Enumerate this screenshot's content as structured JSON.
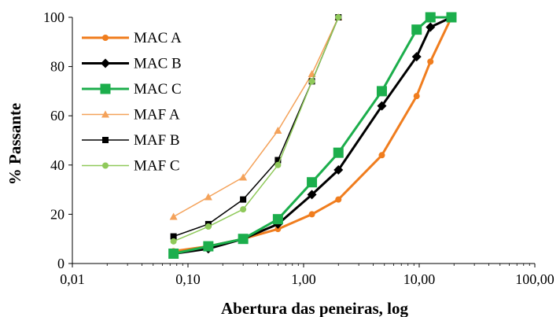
{
  "chart_data": {
    "type": "line",
    "title": "",
    "xlabel": "Abertura das peneiras, log",
    "ylabel": "% Passante",
    "x_scale": "log",
    "xlim": [
      0.01,
      100
    ],
    "ylim": [
      0,
      100
    ],
    "x_ticks": [
      {
        "value": 0.01,
        "label": "0,01"
      },
      {
        "value": 0.1,
        "label": "0,10"
      },
      {
        "value": 1,
        "label": "1,00"
      },
      {
        "value": 10,
        "label": "10,00"
      },
      {
        "value": 100,
        "label": "100,00"
      }
    ],
    "y_ticks": [
      {
        "value": 0,
        "label": "0"
      },
      {
        "value": 20,
        "label": "20"
      },
      {
        "value": 40,
        "label": "40"
      },
      {
        "value": 60,
        "label": "60"
      },
      {
        "value": 80,
        "label": "80"
      },
      {
        "value": 100,
        "label": "100"
      }
    ],
    "grid": false,
    "legend_position": "top-left",
    "series": [
      {
        "name": "MAC A",
        "color": "#f07d1e",
        "marker": "circle",
        "line_width": 3,
        "marker_size": 4,
        "points": [
          [
            0.075,
            5
          ],
          [
            0.15,
            7
          ],
          [
            0.3,
            10
          ],
          [
            0.6,
            14
          ],
          [
            1.18,
            20
          ],
          [
            2,
            26
          ],
          [
            4.75,
            44
          ],
          [
            9.5,
            68
          ],
          [
            12.5,
            82
          ],
          [
            19,
            100
          ]
        ]
      },
      {
        "name": "MAC B",
        "color": "#000000",
        "marker": "diamond",
        "line_width": 3,
        "marker_size": 6,
        "points": [
          [
            0.075,
            4
          ],
          [
            0.15,
            6
          ],
          [
            0.3,
            10
          ],
          [
            0.6,
            16
          ],
          [
            1.18,
            28
          ],
          [
            2,
            38
          ],
          [
            4.75,
            64
          ],
          [
            9.5,
            84
          ],
          [
            12.5,
            96
          ],
          [
            19,
            100
          ]
        ]
      },
      {
        "name": "MAC C",
        "color": "#1cae4c",
        "marker": "square",
        "line_width": 3,
        "marker_size": 6.5,
        "points": [
          [
            0.075,
            4
          ],
          [
            0.15,
            7
          ],
          [
            0.3,
            10
          ],
          [
            0.6,
            18
          ],
          [
            1.18,
            33
          ],
          [
            2,
            45
          ],
          [
            4.75,
            70
          ],
          [
            9.5,
            95
          ],
          [
            12.5,
            100
          ],
          [
            19,
            100
          ]
        ]
      },
      {
        "name": "MAF A",
        "color": "#f4a25a",
        "marker": "triangle",
        "line_width": 1.5,
        "marker_size": 5,
        "points": [
          [
            0.075,
            19
          ],
          [
            0.15,
            27
          ],
          [
            0.3,
            35
          ],
          [
            0.6,
            54
          ],
          [
            1.18,
            77
          ],
          [
            2,
            100
          ]
        ]
      },
      {
        "name": "MAF B",
        "color": "#000000",
        "marker": "square",
        "line_width": 1.5,
        "marker_size": 4,
        "points": [
          [
            0.075,
            11
          ],
          [
            0.15,
            16
          ],
          [
            0.3,
            26
          ],
          [
            0.6,
            42
          ],
          [
            1.18,
            74
          ],
          [
            2,
            100
          ]
        ]
      },
      {
        "name": "MAF C",
        "color": "#8fc95a",
        "marker": "circle",
        "line_width": 1.5,
        "marker_size": 4,
        "points": [
          [
            0.075,
            9
          ],
          [
            0.15,
            15
          ],
          [
            0.3,
            22
          ],
          [
            0.6,
            40
          ],
          [
            1.18,
            74
          ],
          [
            2,
            100
          ]
        ]
      }
    ]
  }
}
